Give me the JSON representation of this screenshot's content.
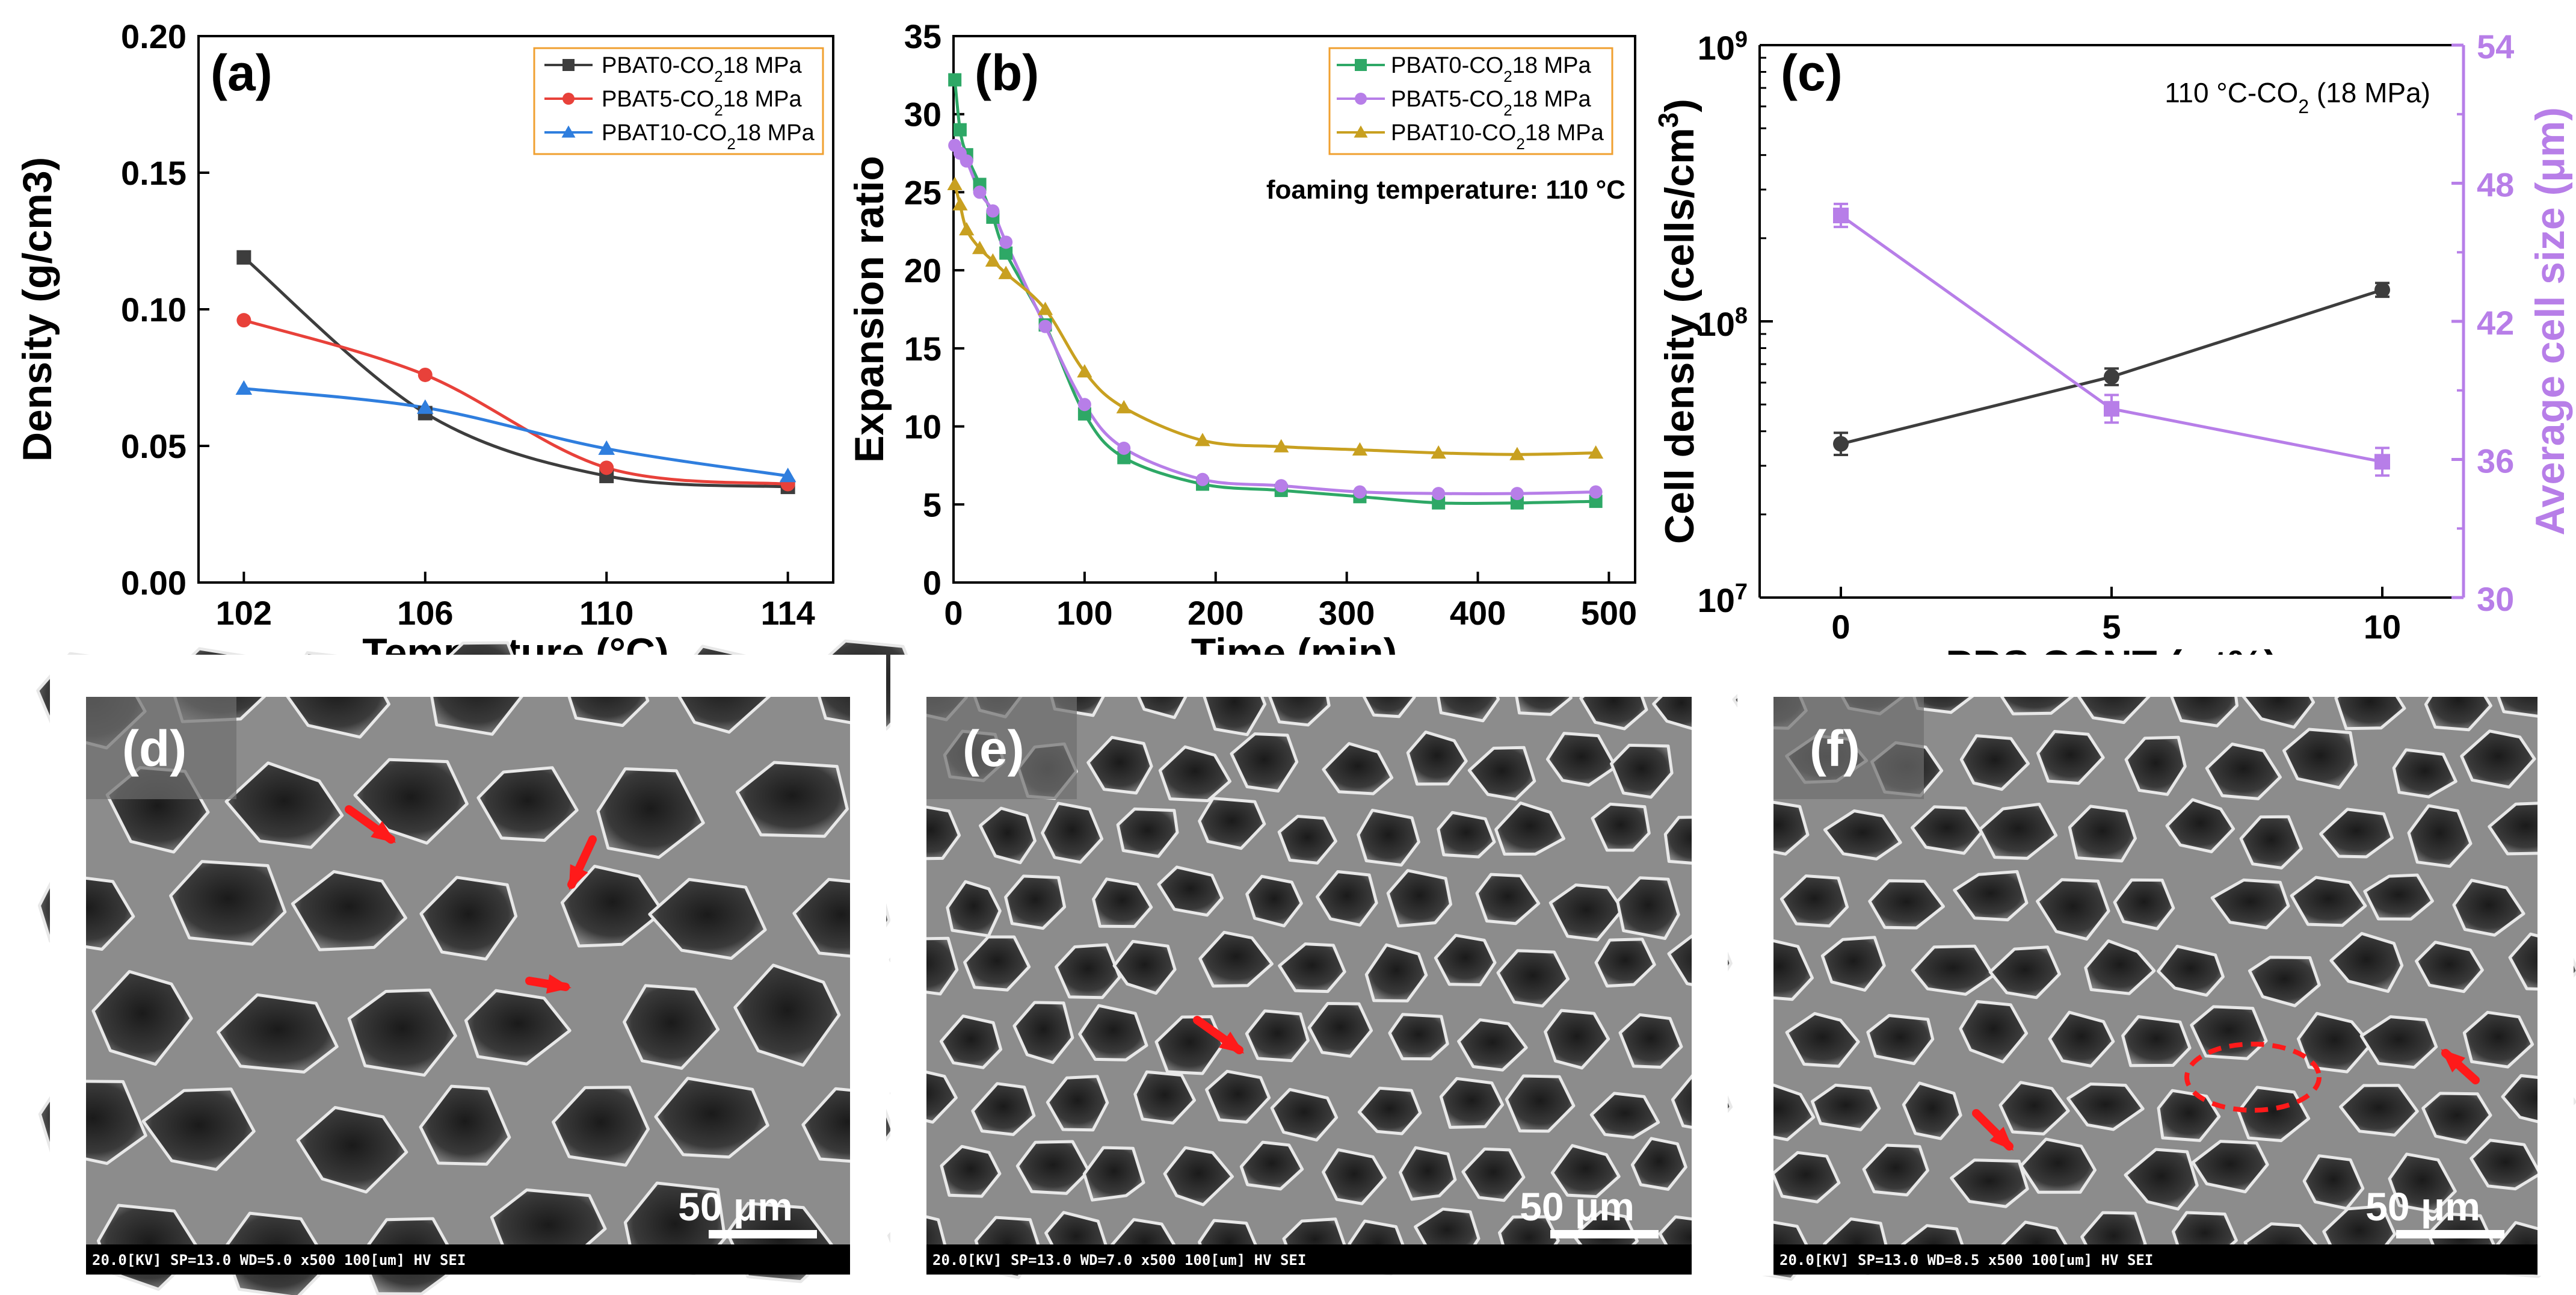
{
  "colors": {
    "black_series": "#3d3d3d",
    "red_series": "#e8413a",
    "blue_series": "#2f7ede",
    "green_series": "#2ea866",
    "purple_series": "#b77ee8",
    "gold_series": "#c8a020",
    "legend_border": "#f0a030",
    "purple_axis": "#b77ee8",
    "arrow": "#ff1a1a"
  },
  "chart_data": [
    {
      "id": "a",
      "type": "line",
      "panel_label": "(a)",
      "xlabel": "Temprature (°C)",
      "ylabel": "Density (g/cm3)",
      "xlim": [
        101,
        115
      ],
      "ylim": [
        0.0,
        0.2
      ],
      "xticks": [
        "102",
        "106",
        "110",
        "114"
      ],
      "xtick_values": [
        102,
        106,
        110,
        114
      ],
      "yticks": [
        "0.00",
        "0.05",
        "0.10",
        "0.15",
        "0.20"
      ],
      "ytick_values": [
        0.0,
        0.05,
        0.1,
        0.15,
        0.2
      ],
      "legend_position": "top-right",
      "series": [
        {
          "name": "PBAT0-CO218 MPa",
          "legend_text": "PBAT0-CO",
          "legend_sub": "2",
          "legend_suffix": "18 MPa",
          "color": "#3d3d3d",
          "marker": "square",
          "x": [
            102,
            106,
            110,
            114
          ],
          "values": [
            0.119,
            0.062,
            0.039,
            0.035
          ]
        },
        {
          "name": "PBAT5-CO218 MPa",
          "legend_text": "PBAT5-CO",
          "legend_sub": "2",
          "legend_suffix": "18 MPa",
          "color": "#e8413a",
          "marker": "circle",
          "x": [
            102,
            106,
            110,
            114
          ],
          "values": [
            0.096,
            0.076,
            0.042,
            0.036
          ]
        },
        {
          "name": "PBAT10-CO218 MPa",
          "legend_text": "PBAT10-CO",
          "legend_sub": "2",
          "legend_suffix": "18 MPa",
          "color": "#2f7ede",
          "marker": "triangle",
          "x": [
            102,
            106,
            110,
            114
          ],
          "values": [
            0.071,
            0.064,
            0.049,
            0.039
          ]
        }
      ]
    },
    {
      "id": "b",
      "type": "line",
      "panel_label": "(b)",
      "xlabel": "Time (min)",
      "ylabel": "Expansion ratio",
      "annotation": "foaming temperature: 110 °C",
      "xlim": [
        0,
        520
      ],
      "ylim": [
        0,
        35
      ],
      "xticks": [
        "0",
        "100",
        "200",
        "300",
        "400",
        "500"
      ],
      "xtick_values": [
        0,
        100,
        200,
        300,
        400,
        500
      ],
      "yticks": [
        "0",
        "5",
        "10",
        "15",
        "20",
        "25",
        "30",
        "35"
      ],
      "ytick_values": [
        0,
        5,
        10,
        15,
        20,
        25,
        30,
        35
      ],
      "legend_position": "top-right",
      "series": [
        {
          "name": "PBAT0-CO218 MPa",
          "legend_text": "PBAT0-CO",
          "legend_sub": "2",
          "legend_suffix": "18 MPa",
          "color": "#2ea866",
          "marker": "square",
          "x": [
            1,
            5,
            10,
            20,
            30,
            40,
            70,
            100,
            130,
            190,
            250,
            310,
            370,
            430,
            490
          ],
          "values": [
            32.2,
            29.0,
            27.4,
            25.5,
            23.4,
            21.1,
            16.5,
            10.8,
            8.0,
            6.3,
            5.9,
            5.5,
            5.1,
            5.1,
            5.2
          ]
        },
        {
          "name": "PBAT5-CO218 MPa",
          "legend_text": "PBAT5-CO",
          "legend_sub": "2",
          "legend_suffix": "18 MPa",
          "color": "#b77ee8",
          "marker": "circle",
          "x": [
            1,
            5,
            10,
            20,
            30,
            40,
            70,
            100,
            130,
            190,
            250,
            310,
            370,
            430,
            490
          ],
          "values": [
            28.0,
            27.5,
            27.0,
            25.0,
            23.8,
            21.8,
            16.4,
            11.4,
            8.6,
            6.6,
            6.2,
            5.8,
            5.7,
            5.7,
            5.8
          ]
        },
        {
          "name": "PBAT10-CO218 MPa",
          "legend_text": "PBAT10-CO",
          "legend_sub": "2",
          "legend_suffix": "18 MPa",
          "color": "#c8a020",
          "marker": "triangle",
          "x": [
            1,
            5,
            10,
            20,
            30,
            40,
            70,
            100,
            130,
            190,
            250,
            310,
            370,
            430,
            490
          ],
          "values": [
            25.5,
            24.2,
            22.6,
            21.4,
            20.6,
            19.8,
            17.5,
            13.5,
            11.2,
            9.1,
            8.7,
            8.5,
            8.3,
            8.2,
            8.3
          ]
        }
      ]
    },
    {
      "id": "c",
      "type": "line",
      "panel_label": "(c)",
      "xlabel": "PBS CONT (wt%)",
      "ylabel": "Cell density (cells/cm3)",
      "ylabel_right": "Average cell size (μm)",
      "annotation": "110 °C-CO2 (18 MPa)",
      "xlim": [
        -1.5,
        11.5
      ],
      "xticks": [
        "0",
        "5",
        "10"
      ],
      "xtick_values": [
        0,
        5,
        10
      ],
      "ylim_log10": [
        7,
        9
      ],
      "yticks_left_base": [
        "10",
        "10",
        "10"
      ],
      "yticks_left_exp": [
        "7",
        "8",
        "9"
      ],
      "ylim_right": [
        30,
        54
      ],
      "yticks_right": [
        "30",
        "36",
        "42",
        "48",
        "54"
      ],
      "ytick_right_values": [
        30,
        36,
        42,
        48,
        54
      ],
      "series": [
        {
          "name": "Cell density",
          "axis": "left",
          "color": "#3d3d3d",
          "marker": "circle",
          "x": [
            0,
            5,
            10
          ],
          "values": [
            36000000,
            63000000,
            130000000
          ],
          "errors_log": [
            0.04,
            0.03,
            0.025
          ]
        },
        {
          "name": "Average cell size",
          "axis": "right",
          "color": "#b77ee8",
          "marker": "square",
          "x": [
            0,
            5,
            10
          ],
          "values": [
            46.6,
            38.2,
            35.9
          ],
          "errors": [
            0.5,
            0.6,
            0.6
          ]
        }
      ]
    }
  ],
  "sem_images": [
    {
      "label": "(d)",
      "info_text": "20.0[KV]   SP=13.0   WD=5.0   x500      100[um]    HV      SEI",
      "scale_text": "50 μm"
    },
    {
      "label": "(e)",
      "info_text": "20.0[KV]   SP=13.0   WD=7.0   x500      100[um]    HV      SEI",
      "scale_text": "50 μm"
    },
    {
      "label": "(f)",
      "info_text": "20.0[KV]   SP=13.0   WD=8.5   x500      100[um]    HV      SEI",
      "scale_text": "50 μm"
    }
  ]
}
